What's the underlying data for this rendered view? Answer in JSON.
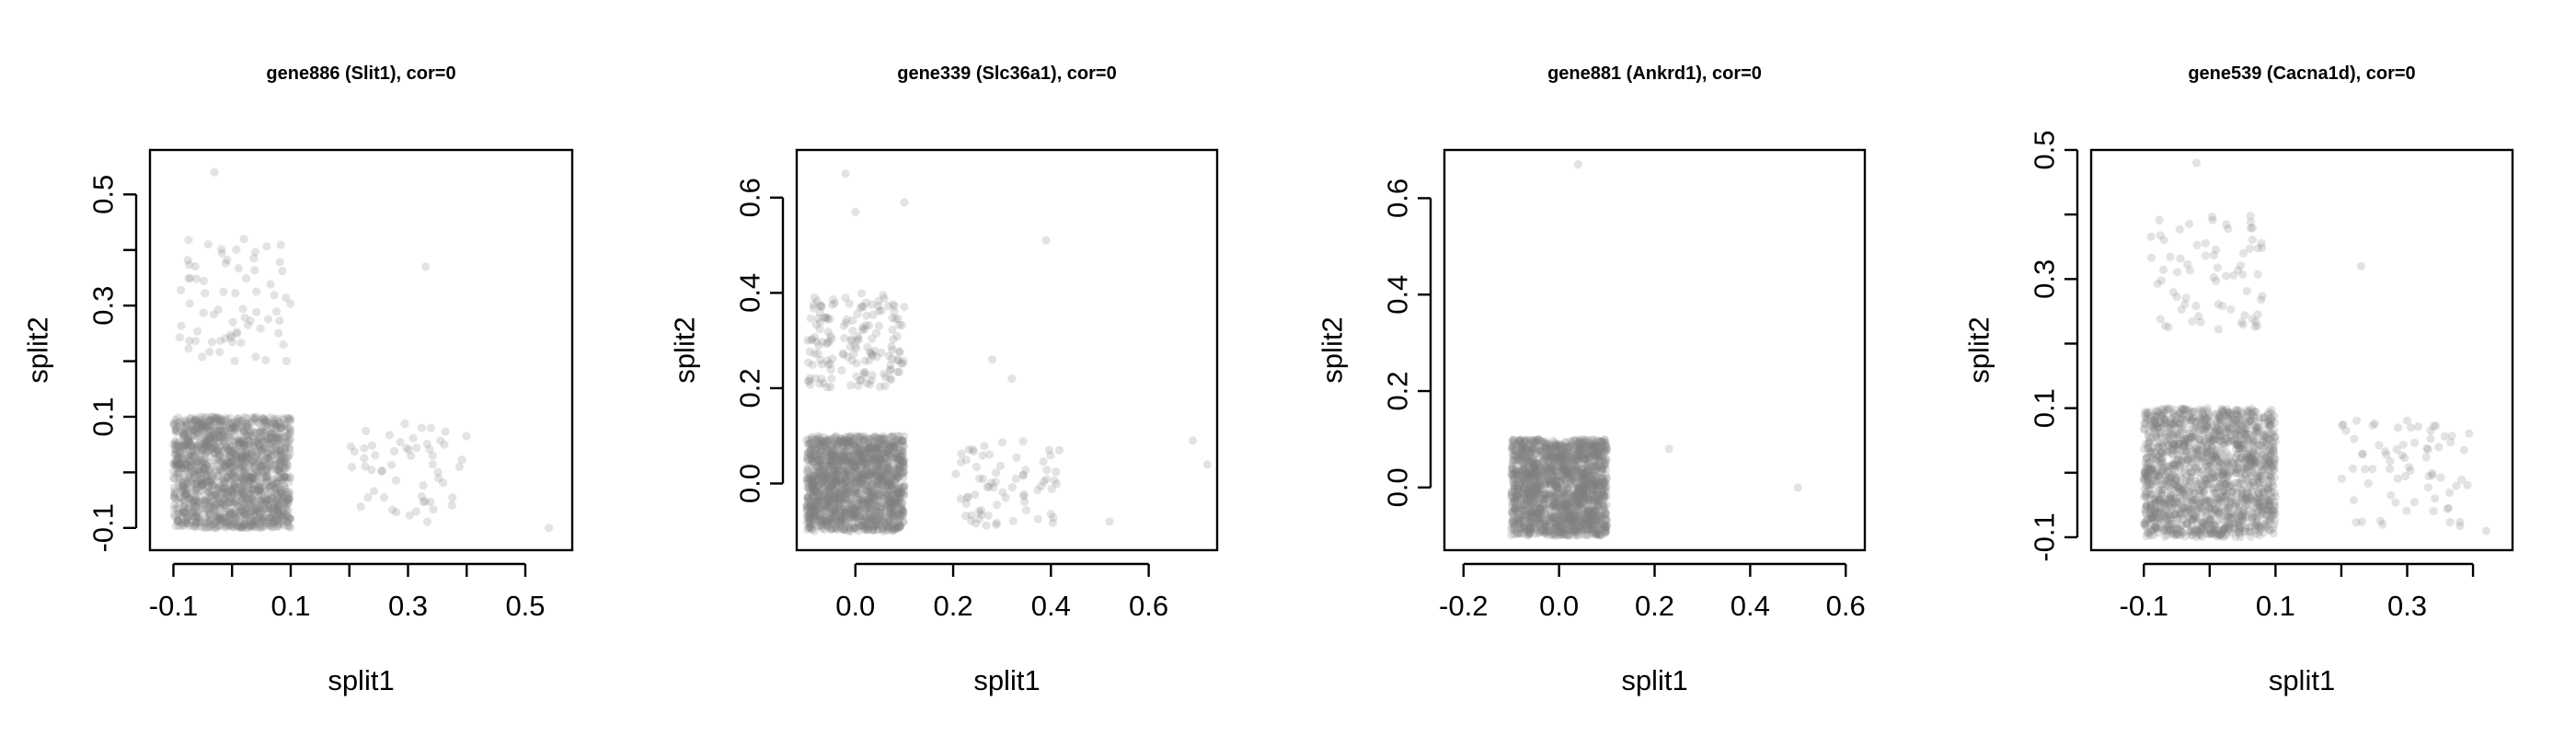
{
  "chart_data": [
    {
      "type": "scatter",
      "title": "gene886 (Slit1), cor=0",
      "xlabel": "split1",
      "ylabel": "split2",
      "xlim": [
        -0.14,
        0.58
      ],
      "ylim": [
        -0.14,
        0.58
      ],
      "xticks": [
        -0.1,
        0.1,
        0.3,
        0.5
      ],
      "xtick_labels": [
        "-0.1",
        "0.1",
        "0.3",
        "0.5"
      ],
      "xticks_minor": [
        0.0,
        0.2,
        0.4
      ],
      "yticks": [
        -0.1,
        0.1,
        0.3,
        0.5
      ],
      "ytick_labels": [
        "-0.1",
        "0.1",
        "0.3",
        "0.5"
      ],
      "yticks_minor": [
        0.0,
        0.2,
        0.4
      ],
      "clusters": [
        {
          "x_range": [
            -0.1,
            0.1
          ],
          "y_range": [
            -0.1,
            0.1
          ],
          "n": 1600
        },
        {
          "x_range": [
            -0.09,
            0.1
          ],
          "y_range": [
            0.2,
            0.42
          ],
          "n": 70
        },
        {
          "x_range": [
            0.2,
            0.4
          ],
          "y_range": [
            -0.09,
            0.09
          ],
          "n": 55
        }
      ],
      "points": [
        [
          -0.03,
          0.54
        ],
        [
          0.33,
          0.37
        ],
        [
          0.54,
          -0.1
        ],
        [
          0.02,
          0.42
        ]
      ],
      "point_color": "#808080",
      "point_alpha": 0.22,
      "grid": false
    },
    {
      "type": "scatter",
      "title": "gene339 (Slc36a1), cor=0",
      "xlabel": "split1",
      "ylabel": "split2",
      "xlim": [
        -0.12,
        0.74
      ],
      "ylim": [
        -0.14,
        0.7
      ],
      "xticks": [
        0.0,
        0.2,
        0.4,
        0.6
      ],
      "xtick_labels": [
        "0.0",
        "0.2",
        "0.4",
        "0.6"
      ],
      "xticks_minor": [],
      "yticks": [
        0.0,
        0.2,
        0.4,
        0.6
      ],
      "ytick_labels": [
        "0.0",
        "0.2",
        "0.4",
        "0.6"
      ],
      "yticks_minor": [],
      "clusters": [
        {
          "x_range": [
            -0.1,
            0.1
          ],
          "y_range": [
            -0.1,
            0.1
          ],
          "n": 1600
        },
        {
          "x_range": [
            -0.1,
            0.1
          ],
          "y_range": [
            0.2,
            0.4
          ],
          "n": 160
        },
        {
          "x_range": [
            0.2,
            0.42
          ],
          "y_range": [
            -0.09,
            0.09
          ],
          "n": 70
        }
      ],
      "points": [
        [
          -0.02,
          0.65
        ],
        [
          0.39,
          0.51
        ],
        [
          0.1,
          0.59
        ],
        [
          0.69,
          0.09
        ],
        [
          0.72,
          0.04
        ],
        [
          0.52,
          -0.08
        ],
        [
          0.32,
          0.22
        ],
        [
          0.0,
          0.57
        ],
        [
          0.28,
          0.26
        ]
      ],
      "point_color": "#808080",
      "point_alpha": 0.22,
      "grid": false
    },
    {
      "type": "scatter",
      "title": "gene881 (Ankrd1), cor=0",
      "xlabel": "split1",
      "ylabel": "split2",
      "xlim": [
        -0.24,
        0.64
      ],
      "ylim": [
        -0.13,
        0.7
      ],
      "xticks": [
        -0.2,
        0.0,
        0.2,
        0.4,
        0.6
      ],
      "xtick_labels": [
        "-0.2",
        "0.0",
        "0.2",
        "0.4",
        "0.6"
      ],
      "xticks_minor": [],
      "yticks": [
        0.0,
        0.2,
        0.4,
        0.6
      ],
      "ytick_labels": [
        "0.0",
        "0.2",
        "0.4",
        "0.6"
      ],
      "yticks_minor": [],
      "clusters": [
        {
          "x_range": [
            -0.1,
            0.1
          ],
          "y_range": [
            -0.1,
            0.1
          ],
          "n": 1700
        }
      ],
      "points": [
        [
          0.04,
          0.67
        ],
        [
          0.23,
          0.08
        ],
        [
          0.5,
          0.0
        ]
      ],
      "point_color": "#808080",
      "point_alpha": 0.22,
      "grid": false
    },
    {
      "type": "scatter",
      "title": "gene539 (Cacna1d), cor=0",
      "xlabel": "split1",
      "ylabel": "split2",
      "xlim": [
        -0.18,
        0.46
      ],
      "ylim": [
        -0.12,
        0.5
      ],
      "xticks": [
        -0.1,
        0.1,
        0.3
      ],
      "xtick_labels": [
        "-0.1",
        "0.1",
        "0.3"
      ],
      "xticks_minor": [
        0.0,
        0.2,
        0.4
      ],
      "yticks": [
        -0.1,
        0.1,
        0.3,
        0.5
      ],
      "ytick_labels": [
        "-0.1",
        "0.1",
        "0.3",
        "0.5"
      ],
      "yticks_minor": [
        0.0,
        0.2,
        0.4
      ],
      "clusters": [
        {
          "x_range": [
            -0.1,
            0.1
          ],
          "y_range": [
            -0.1,
            0.1
          ],
          "n": 1600
        },
        {
          "x_range": [
            -0.1,
            0.08
          ],
          "y_range": [
            0.22,
            0.4
          ],
          "n": 70
        },
        {
          "x_range": [
            0.2,
            0.4
          ],
          "y_range": [
            -0.09,
            0.09
          ],
          "n": 70
        }
      ],
      "points": [
        [
          -0.02,
          0.48
        ],
        [
          0.23,
          0.32
        ],
        [
          0.42,
          -0.09
        ]
      ],
      "point_color": "#808080",
      "point_alpha": 0.22,
      "grid": false
    }
  ]
}
